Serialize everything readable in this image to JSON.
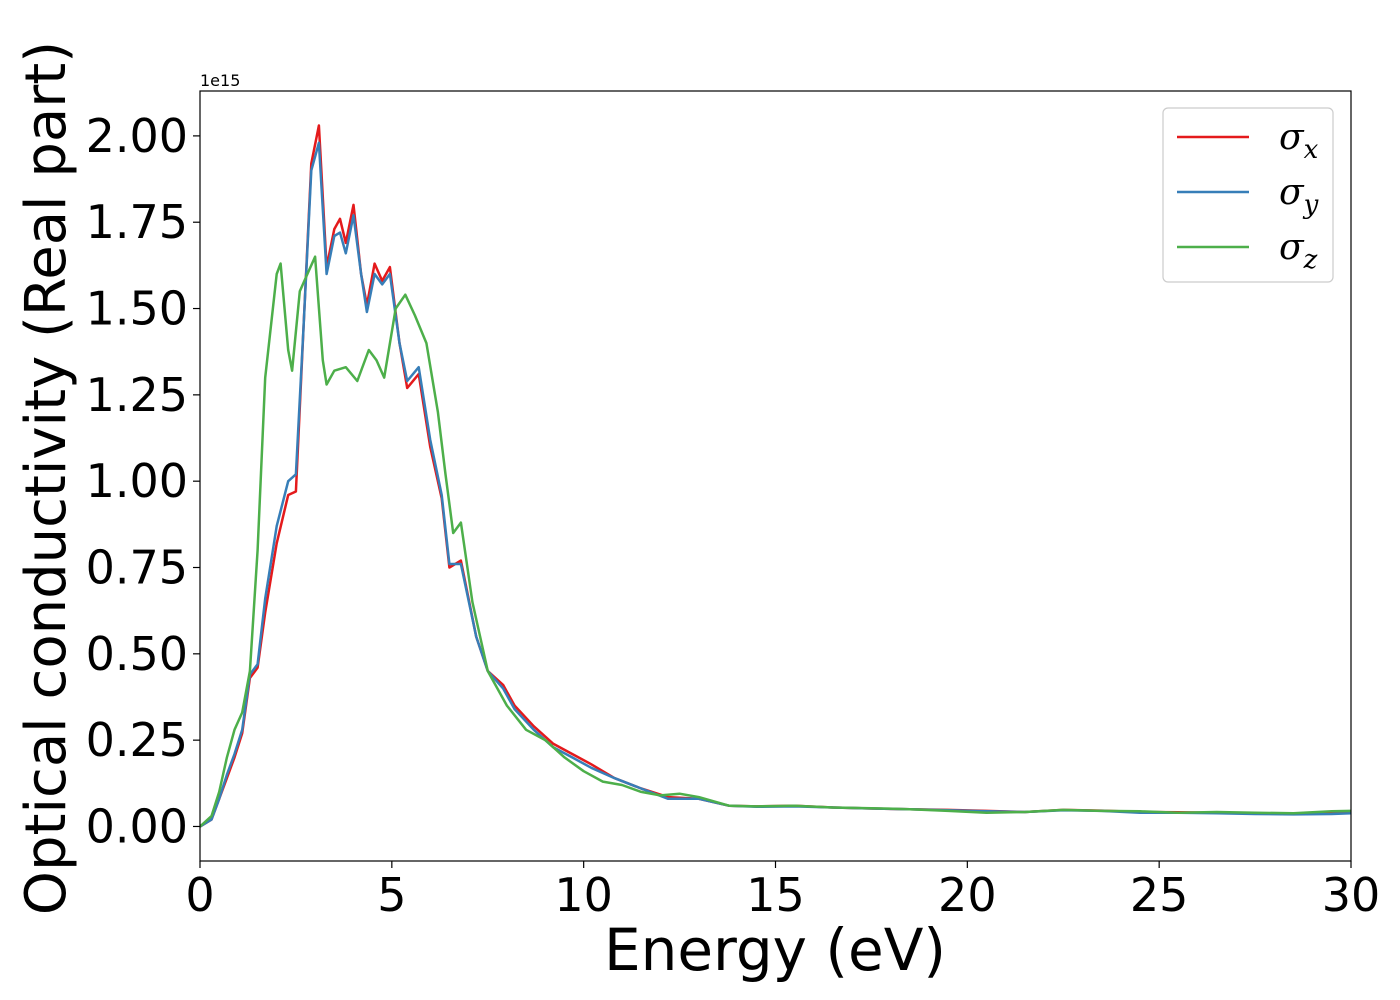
{
  "chart_data": {
    "type": "line",
    "title": "",
    "xlabel": "Energy (eV)",
    "ylabel": "Optical conductivity (Real part)",
    "y_offset_label": "1e15",
    "xlim": [
      0,
      30
    ],
    "ylim": [
      -0.1,
      2.13
    ],
    "x_ticks": [
      0,
      5,
      10,
      15,
      20,
      25,
      30
    ],
    "x_tick_labels": [
      "0",
      "5",
      "10",
      "15",
      "20",
      "25",
      "30"
    ],
    "y_ticks": [
      0.0,
      0.25,
      0.5,
      0.75,
      1.0,
      1.25,
      1.5,
      1.75,
      2.0
    ],
    "y_tick_labels": [
      "0.00",
      "0.25",
      "0.50",
      "0.75",
      "1.00",
      "1.25",
      "1.50",
      "1.75",
      "2.00"
    ],
    "grid": false,
    "legend_position": "top-right",
    "series": [
      {
        "name": "σx",
        "name_base": "σ",
        "name_sub": "x",
        "color": "#e41a1c",
        "points": [
          [
            0,
            0.0
          ],
          [
            0.3,
            0.02
          ],
          [
            0.5,
            0.08
          ],
          [
            0.7,
            0.14
          ],
          [
            0.9,
            0.2
          ],
          [
            1.1,
            0.27
          ],
          [
            1.3,
            0.43
          ],
          [
            1.5,
            0.46
          ],
          [
            1.7,
            0.62
          ],
          [
            2.0,
            0.82
          ],
          [
            2.3,
            0.96
          ],
          [
            2.5,
            0.97
          ],
          [
            2.7,
            1.45
          ],
          [
            2.9,
            1.92
          ],
          [
            3.1,
            2.03
          ],
          [
            3.3,
            1.62
          ],
          [
            3.5,
            1.73
          ],
          [
            3.65,
            1.76
          ],
          [
            3.8,
            1.69
          ],
          [
            4.0,
            1.8
          ],
          [
            4.2,
            1.6
          ],
          [
            4.35,
            1.51
          ],
          [
            4.55,
            1.63
          ],
          [
            4.75,
            1.58
          ],
          [
            4.95,
            1.62
          ],
          [
            5.2,
            1.4
          ],
          [
            5.4,
            1.27
          ],
          [
            5.7,
            1.31
          ],
          [
            6.0,
            1.1
          ],
          [
            6.3,
            0.95
          ],
          [
            6.5,
            0.75
          ],
          [
            6.8,
            0.77
          ],
          [
            7.2,
            0.55
          ],
          [
            7.5,
            0.45
          ],
          [
            7.9,
            0.41
          ],
          [
            8.2,
            0.35
          ],
          [
            8.7,
            0.29
          ],
          [
            9.2,
            0.24
          ],
          [
            9.7,
            0.21
          ],
          [
            10.2,
            0.18
          ],
          [
            10.8,
            0.14
          ],
          [
            11.5,
            0.11
          ],
          [
            12.2,
            0.085
          ],
          [
            13.0,
            0.08
          ],
          [
            13.8,
            0.06
          ],
          [
            14.5,
            0.058
          ],
          [
            15.5,
            0.06
          ],
          [
            16.5,
            0.055
          ],
          [
            17.5,
            0.052
          ],
          [
            18.5,
            0.05
          ],
          [
            19.5,
            0.048
          ],
          [
            20.5,
            0.045
          ],
          [
            21.5,
            0.042
          ],
          [
            22.5,
            0.048
          ],
          [
            23.5,
            0.046
          ],
          [
            24.5,
            0.042
          ],
          [
            25.5,
            0.041
          ],
          [
            26.5,
            0.04
          ],
          [
            27.5,
            0.038
          ],
          [
            28.5,
            0.036
          ],
          [
            29.5,
            0.038
          ],
          [
            30,
            0.04
          ]
        ]
      },
      {
        "name": "σy",
        "name_base": "σ",
        "name_sub": "y",
        "color": "#377eb8",
        "points": [
          [
            0,
            0.0
          ],
          [
            0.3,
            0.02
          ],
          [
            0.5,
            0.08
          ],
          [
            0.7,
            0.15
          ],
          [
            0.9,
            0.21
          ],
          [
            1.1,
            0.28
          ],
          [
            1.3,
            0.44
          ],
          [
            1.5,
            0.47
          ],
          [
            1.7,
            0.66
          ],
          [
            2.0,
            0.87
          ],
          [
            2.3,
            1.0
          ],
          [
            2.5,
            1.02
          ],
          [
            2.7,
            1.45
          ],
          [
            2.9,
            1.9
          ],
          [
            3.1,
            1.98
          ],
          [
            3.3,
            1.6
          ],
          [
            3.5,
            1.71
          ],
          [
            3.65,
            1.72
          ],
          [
            3.8,
            1.66
          ],
          [
            4.0,
            1.77
          ],
          [
            4.2,
            1.6
          ],
          [
            4.35,
            1.49
          ],
          [
            4.55,
            1.6
          ],
          [
            4.75,
            1.57
          ],
          [
            4.95,
            1.6
          ],
          [
            5.2,
            1.4
          ],
          [
            5.4,
            1.29
          ],
          [
            5.7,
            1.33
          ],
          [
            6.0,
            1.12
          ],
          [
            6.3,
            0.96
          ],
          [
            6.5,
            0.76
          ],
          [
            6.8,
            0.76
          ],
          [
            7.2,
            0.55
          ],
          [
            7.5,
            0.45
          ],
          [
            7.9,
            0.4
          ],
          [
            8.2,
            0.34
          ],
          [
            8.7,
            0.28
          ],
          [
            9.2,
            0.23
          ],
          [
            9.7,
            0.2
          ],
          [
            10.2,
            0.17
          ],
          [
            10.8,
            0.14
          ],
          [
            11.5,
            0.11
          ],
          [
            12.2,
            0.08
          ],
          [
            13.0,
            0.08
          ],
          [
            13.8,
            0.06
          ],
          [
            14.5,
            0.057
          ],
          [
            15.5,
            0.058
          ],
          [
            16.5,
            0.055
          ],
          [
            17.5,
            0.052
          ],
          [
            18.5,
            0.05
          ],
          [
            19.5,
            0.047
          ],
          [
            20.5,
            0.044
          ],
          [
            21.5,
            0.042
          ],
          [
            22.5,
            0.047
          ],
          [
            23.5,
            0.045
          ],
          [
            24.5,
            0.04
          ],
          [
            25.5,
            0.04
          ],
          [
            26.5,
            0.038
          ],
          [
            27.5,
            0.036
          ],
          [
            28.5,
            0.035
          ],
          [
            29.5,
            0.036
          ],
          [
            30,
            0.038
          ]
        ]
      },
      {
        "name": "σz",
        "name_base": "σ",
        "name_sub": "z",
        "color": "#4daf4a",
        "points": [
          [
            0,
            0.0
          ],
          [
            0.3,
            0.03
          ],
          [
            0.5,
            0.1
          ],
          [
            0.7,
            0.2
          ],
          [
            0.9,
            0.28
          ],
          [
            1.1,
            0.33
          ],
          [
            1.3,
            0.45
          ],
          [
            1.5,
            0.8
          ],
          [
            1.7,
            1.3
          ],
          [
            2.0,
            1.6
          ],
          [
            2.1,
            1.63
          ],
          [
            2.3,
            1.38
          ],
          [
            2.4,
            1.32
          ],
          [
            2.6,
            1.55
          ],
          [
            2.8,
            1.6
          ],
          [
            3.0,
            1.65
          ],
          [
            3.2,
            1.35
          ],
          [
            3.3,
            1.28
          ],
          [
            3.5,
            1.32
          ],
          [
            3.8,
            1.33
          ],
          [
            4.1,
            1.29
          ],
          [
            4.4,
            1.38
          ],
          [
            4.6,
            1.35
          ],
          [
            4.8,
            1.3
          ],
          [
            5.1,
            1.5
          ],
          [
            5.35,
            1.54
          ],
          [
            5.6,
            1.48
          ],
          [
            5.9,
            1.4
          ],
          [
            6.2,
            1.2
          ],
          [
            6.4,
            1.02
          ],
          [
            6.6,
            0.85
          ],
          [
            6.8,
            0.88
          ],
          [
            7.1,
            0.65
          ],
          [
            7.5,
            0.45
          ],
          [
            8.0,
            0.35
          ],
          [
            8.5,
            0.28
          ],
          [
            9.0,
            0.25
          ],
          [
            9.5,
            0.2
          ],
          [
            10.0,
            0.16
          ],
          [
            10.5,
            0.13
          ],
          [
            11.0,
            0.12
          ],
          [
            11.5,
            0.1
          ],
          [
            12.0,
            0.09
          ],
          [
            12.5,
            0.095
          ],
          [
            13.0,
            0.085
          ],
          [
            13.8,
            0.06
          ],
          [
            14.5,
            0.058
          ],
          [
            15.5,
            0.06
          ],
          [
            16.5,
            0.055
          ],
          [
            17.5,
            0.053
          ],
          [
            18.5,
            0.05
          ],
          [
            19.5,
            0.045
          ],
          [
            20.5,
            0.04
          ],
          [
            21.5,
            0.042
          ],
          [
            22.5,
            0.048
          ],
          [
            23.5,
            0.045
          ],
          [
            24.5,
            0.044
          ],
          [
            25.5,
            0.04
          ],
          [
            26.5,
            0.042
          ],
          [
            27.5,
            0.04
          ],
          [
            28.5,
            0.038
          ],
          [
            29.5,
            0.044
          ],
          [
            30,
            0.045
          ]
        ]
      }
    ]
  }
}
